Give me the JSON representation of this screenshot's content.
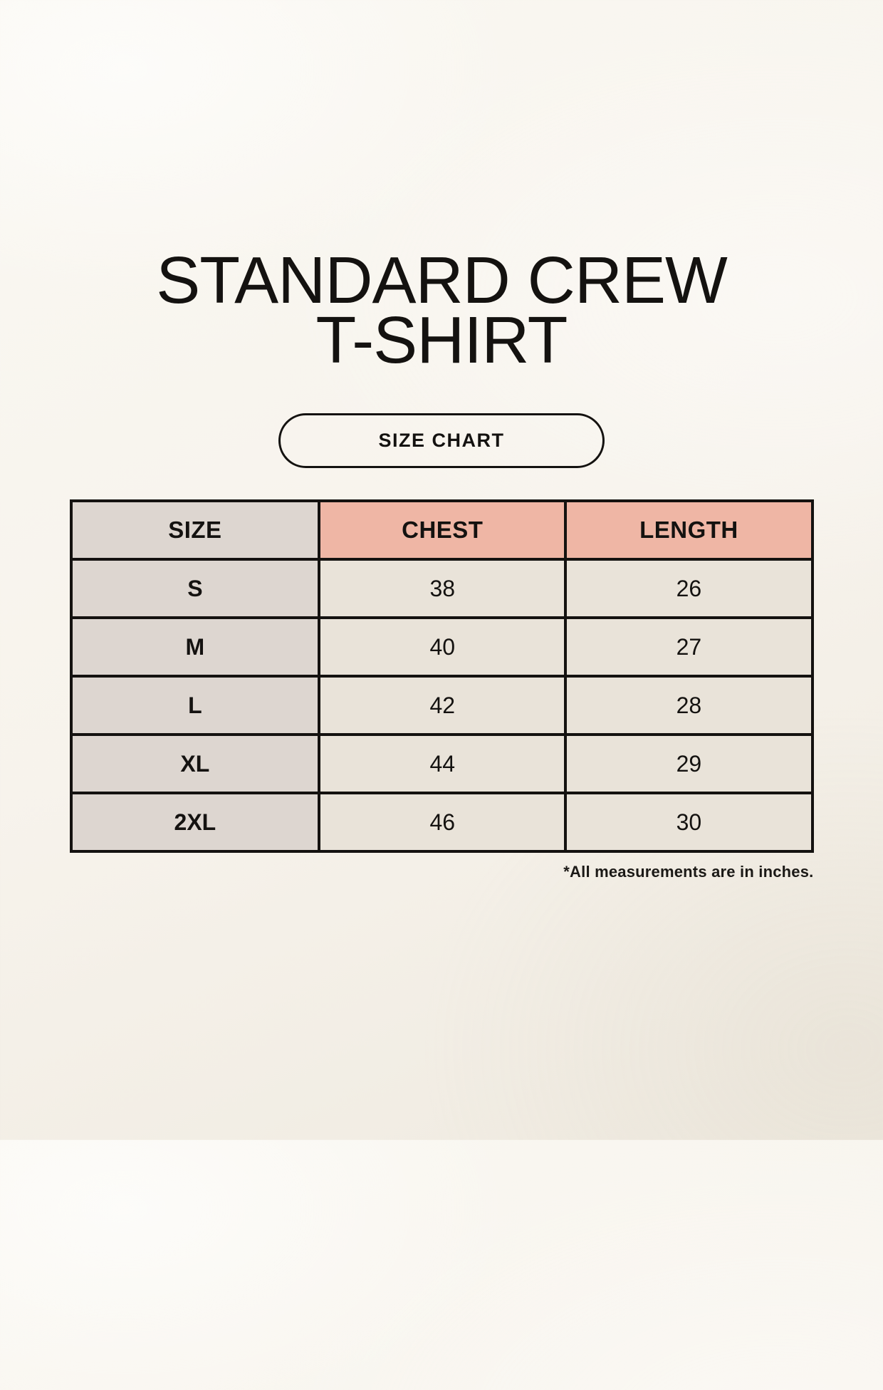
{
  "page": {
    "title": {
      "line1": "STANDARD CREW",
      "line2": "T-SHIRT"
    },
    "size_chart_button_label": "SIZE CHART",
    "footnote": "*All measurements are in inches."
  },
  "chart_data": {
    "type": "table",
    "title": "STANDARD CREW T-SHIRT",
    "subtitle": "SIZE CHART",
    "columns": [
      "SIZE",
      "CHEST",
      "LENGTH"
    ],
    "rows": [
      [
        "S",
        38,
        26
      ],
      [
        "M",
        40,
        27
      ],
      [
        "L",
        42,
        28
      ],
      [
        "XL",
        44,
        29
      ],
      [
        "2XL",
        46,
        30
      ]
    ],
    "units": "inches",
    "footnote": "*All measurements are in inches."
  },
  "colors": {
    "background": "#f7f3eb",
    "table_header_accent": "#efb6a5",
    "table_size_column": "#ddd6d0",
    "table_cell": "#e9e3d9",
    "border_ink": "#141210",
    "text": "#171513"
  }
}
